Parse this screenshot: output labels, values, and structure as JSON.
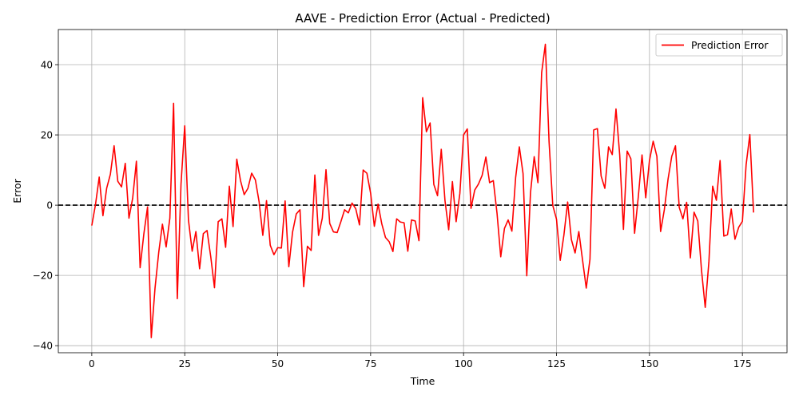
{
  "chart_data": {
    "type": "line",
    "title": "AAVE - Prediction Error (Actual - Predicted)",
    "xlabel": "Time",
    "ylabel": "Error",
    "xlim": [
      -9,
      187
    ],
    "ylim": [
      -42,
      50
    ],
    "xticks": [
      0,
      25,
      50,
      75,
      100,
      125,
      150,
      175
    ],
    "yticks": [
      -40,
      -20,
      0,
      20,
      40
    ],
    "grid": true,
    "legend_position": "top-right",
    "reference_line": {
      "y": 0,
      "style": "dashed",
      "color": "#000000"
    },
    "series": [
      {
        "name": "Prediction Error",
        "color": "#ff0000",
        "values": [
          -5.8,
          0.2,
          8.0,
          -3.0,
          4.8,
          8.8,
          16.9,
          6.8,
          5.2,
          11.9,
          -3.7,
          2.0,
          12.5,
          -17.8,
          -8.2,
          -0.5,
          -37.7,
          -23.7,
          -13.5,
          -5.4,
          -11.9,
          -3.7,
          29.0,
          -26.6,
          6.0,
          22.6,
          -4.2,
          -13.1,
          -7.5,
          -18.1,
          -8.1,
          -7.2,
          -14.7,
          -23.5,
          -4.7,
          -3.9,
          -12.0,
          5.4,
          -6.1,
          13.1,
          7.0,
          3.0,
          4.8,
          9.1,
          7.2,
          1.0,
          -8.6,
          1.3,
          -11.4,
          -14.1,
          -12.1,
          -12.2,
          1.2,
          -17.5,
          -7.7,
          -2.5,
          -1.3,
          -23.2,
          -11.7,
          -12.9,
          8.6,
          -8.6,
          -3.7,
          10.1,
          -5.2,
          -7.6,
          -7.8,
          -4.7,
          -1.3,
          -2.2,
          0.6,
          -1.0,
          -5.6,
          10.0,
          9.1,
          3.4,
          -6.0,
          0.3,
          -5.3,
          -9.2,
          -10.4,
          -13.2,
          -3.9,
          -4.8,
          -5.0,
          -13.1,
          -4.2,
          -4.5,
          -10.1,
          30.6,
          20.9,
          23.4,
          5.9,
          2.7,
          15.9,
          1.3,
          -7.0,
          6.7,
          -4.7,
          3.3,
          20.0,
          21.7,
          -0.9,
          4.3,
          6.0,
          8.5,
          13.7,
          6.4,
          7.0,
          -2.3,
          -14.7,
          -6.6,
          -4.2,
          -7.4,
          7.8,
          16.6,
          9.0,
          -20.1,
          3.5,
          13.8,
          6.4,
          37.7,
          45.8,
          18.0,
          -0.1,
          -4.0,
          -15.7,
          -8.4,
          0.9,
          -9.8,
          -13.6,
          -7.5,
          -15.6,
          -23.6,
          -15.4,
          21.4,
          21.8,
          8.3,
          4.8,
          16.6,
          14.4,
          27.4,
          14.3,
          -6.9,
          15.4,
          13.2,
          -8.0,
          2.4,
          14.3,
          2.1,
          12.7,
          18.2,
          13.9,
          -7.5,
          -1.3,
          7.4,
          13.9,
          16.9,
          -0.6,
          -3.9,
          0.8,
          -15.0,
          -2.0,
          -4.5,
          -18.5,
          -29.1,
          -15.9,
          5.4,
          1.4,
          12.7,
          -8.8,
          -8.4,
          -1.1,
          -9.7,
          -6.3,
          -4.6,
          11.5,
          20.1,
          -2.1
        ]
      }
    ]
  }
}
